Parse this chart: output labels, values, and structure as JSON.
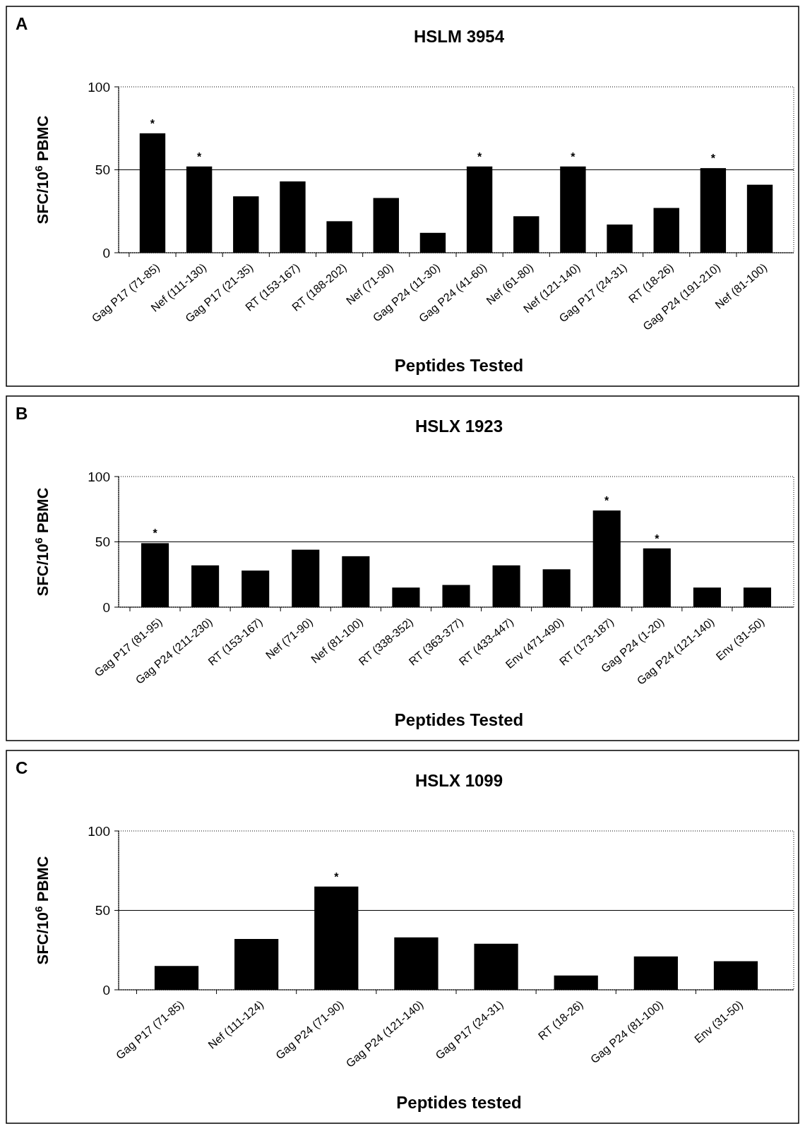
{
  "chart_data": [
    {
      "type": "bar",
      "title": "HSLM 3954",
      "xlabel": "Peptides Tested",
      "ylabel": "SFC/10$^{6}$ PBMC",
      "categories": [
        "Gag P17 (71-85)",
        "Nef (111-130)",
        "Gag P17 (21-35)",
        "RT (153-167)",
        "RT (188-202)",
        "Nef (71-90)",
        "Gag P24 (11-30)",
        "Gag P24 (41-60)",
        "Nef (61-80)",
        "Nef (121-140)",
        "Gag P17 (24-31)",
        "RT (18-26)",
        "Gag P24 (191-210)",
        "Nef (81-100)"
      ],
      "values": [
        72,
        52,
        34,
        43,
        19,
        33,
        12,
        52,
        22,
        52,
        17,
        27,
        51,
        41
      ],
      "color": "#000000",
      "ylim": [
        0,
        100
      ],
      "yticks": [
        0,
        50,
        100
      ],
      "ref_lines": [
        {
          "axis": "y",
          "value": 50
        }
      ],
      "annotations": [
        "A",
        {
          "text": "*",
          "x": "Gag P17 (71-85)",
          "y": 72
        },
        {
          "text": "*",
          "x": "Nef (111-130)",
          "y": 52
        },
        {
          "text": "*",
          "x": "Gag P24 (41-60)",
          "y": 52
        },
        {
          "text": "*",
          "x": "Nef (121-140)",
          "y": 52
        },
        {
          "text": "*",
          "x": "Gag P24 (191-210)",
          "y": 51
        }
      ]
    },
    {
      "type": "bar",
      "title": "HSLX 1923",
      "xlabel": "Peptides Tested",
      "ylabel": "SFC/10$^{6}$ PBMC",
      "categories": [
        "Gag P17 (81-95)",
        "Gag P24 (211-230)",
        "RT (153-167)",
        "Nef (71-90)",
        "Nef (81-100)",
        "RT (338-352)",
        "RT (363-377)",
        "RT (433-447)",
        "Env (471-490)",
        "RT (173-187)",
        "Gag P24 (1-20)",
        "Gag P24 (121-140)",
        "Env (31-50)"
      ],
      "values": [
        49,
        32,
        28,
        44,
        39,
        15,
        17,
        32,
        29,
        74,
        45,
        15,
        15
      ],
      "color": "#000000",
      "ylim": [
        0,
        100
      ],
      "yticks": [
        0,
        50,
        100
      ],
      "ref_lines": [
        {
          "axis": "y",
          "value": 50
        }
      ],
      "annotations": [
        "B",
        {
          "text": "*",
          "x": "Gag P17 (81-95)",
          "y": 49
        },
        {
          "text": "*",
          "x": "RT (173-187)",
          "y": 74
        },
        {
          "text": "*",
          "x": "Gag P24 (1-20)",
          "y": 45
        }
      ]
    },
    {
      "type": "bar",
      "title": "HSLX 1099",
      "xlabel": "Peptides tested",
      "ylabel": "SFC/10$^{6}$ PBMC",
      "categories": [
        "Gag P17 (71-85)",
        "Nef (111-124)",
        "Gag P24 (71-90)",
        "Gag P24 (121-140)",
        "Gag P17 (24-31)",
        "RT (18-26)",
        "Gag P24 (81-100)",
        "Env (31-50)"
      ],
      "values": [
        15,
        32,
        65,
        33,
        29,
        9,
        21,
        18
      ],
      "color": "#000000",
      "ylim": [
        0,
        100
      ],
      "yticks": [
        0,
        50,
        100
      ],
      "ref_lines": [
        {
          "axis": "y",
          "value": 50
        }
      ],
      "annotations": [
        "C",
        {
          "text": "*",
          "x": "Gag P24 (71-90)",
          "y": 65
        }
      ]
    }
  ]
}
